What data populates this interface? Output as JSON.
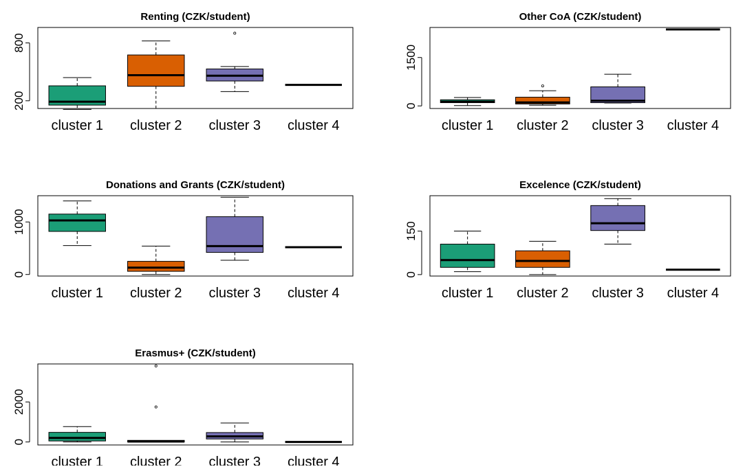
{
  "colors": {
    "cluster_1": "#1b9e77",
    "cluster_2": "#d95f02",
    "cluster_3": "#7570b3",
    "cluster_4": "#ffffff",
    "median": "#000000",
    "frame": "#000000"
  },
  "chart_data": [
    {
      "type": "box",
      "title": "Renting (CZK/student)",
      "categories": [
        "cluster 1",
        "cluster 2",
        "cluster 3",
        "cluster 4"
      ],
      "yticks": [
        200,
        800
      ],
      "ylim": [
        120,
        960
      ],
      "boxes": [
        {
          "min": 110,
          "q1": 155,
          "median": 190,
          "q3": 355,
          "max": 440,
          "outliers": []
        },
        {
          "min": 120,
          "q1": 350,
          "median": 465,
          "q3": 675,
          "max": 820,
          "outliers": []
        },
        {
          "min": 295,
          "q1": 405,
          "median": 460,
          "q3": 530,
          "max": 555,
          "outliers": [
            900
          ]
        },
        {
          "min": 365,
          "q1": 365,
          "median": 365,
          "q3": 365,
          "max": 365,
          "outliers": []
        }
      ]
    },
    {
      "type": "box",
      "title": "Other CoA (CZK/student)",
      "categories": [
        "cluster 1",
        "cluster 2",
        "cluster 3",
        "cluster 4"
      ],
      "yticks": [
        0,
        1500
      ],
      "ylim": [
        -80,
        2430
      ],
      "boxes": [
        {
          "min": 10,
          "q1": 100,
          "median": 130,
          "q3": 190,
          "max": 260,
          "outliers": []
        },
        {
          "min": 20,
          "q1": 60,
          "median": 110,
          "q3": 270,
          "max": 470,
          "outliers": [
            620
          ]
        },
        {
          "min": 90,
          "q1": 100,
          "median": 160,
          "q3": 590,
          "max": 980,
          "outliers": []
        },
        {
          "min": 2370,
          "q1": 2370,
          "median": 2370,
          "q3": 2370,
          "max": 2370,
          "outliers": []
        }
      ]
    },
    {
      "type": "box",
      "title": "Donations and Grants (CZK/student)",
      "categories": [
        "cluster 1",
        "cluster 2",
        "cluster 3",
        "cluster 4"
      ],
      "yticks": [
        0,
        1000
      ],
      "ylim": [
        -30,
        1500
      ],
      "boxes": [
        {
          "min": 550,
          "q1": 820,
          "median": 1030,
          "q3": 1150,
          "max": 1400,
          "outliers": []
        },
        {
          "min": 0,
          "q1": 60,
          "median": 130,
          "q3": 250,
          "max": 540,
          "outliers": []
        },
        {
          "min": 270,
          "q1": 420,
          "median": 540,
          "q3": 1100,
          "max": 1470,
          "outliers": []
        },
        {
          "min": 520,
          "q1": 520,
          "median": 520,
          "q3": 520,
          "max": 520,
          "outliers": []
        }
      ]
    },
    {
      "type": "box",
      "title": "Excelence (CZK/student)",
      "categories": [
        "cluster 1",
        "cluster 2",
        "cluster 3",
        "cluster 4"
      ],
      "yticks": [
        0,
        150
      ],
      "ylim": [
        -5,
        272
      ],
      "boxes": [
        {
          "min": 10,
          "q1": 25,
          "median": 50,
          "q3": 105,
          "max": 150,
          "outliers": []
        },
        {
          "min": 0,
          "q1": 25,
          "median": 47,
          "q3": 82,
          "max": 115,
          "outliers": []
        },
        {
          "min": 105,
          "q1": 152,
          "median": 177,
          "q3": 238,
          "max": 262,
          "outliers": []
        },
        {
          "min": 17,
          "q1": 17,
          "median": 17,
          "q3": 17,
          "max": 17,
          "outliers": []
        }
      ]
    },
    {
      "type": "box",
      "title": "Erasmus+  (CZK/student)",
      "categories": [
        "cluster 1",
        "cluster 2",
        "cluster 3",
        "cluster 4"
      ],
      "yticks": [
        0,
        2000
      ],
      "ylim": [
        -150,
        3900
      ],
      "boxes": [
        {
          "min": 0,
          "q1": 50,
          "median": 200,
          "q3": 480,
          "max": 770,
          "outliers": []
        },
        {
          "min": 0,
          "q1": 0,
          "median": 20,
          "q3": 80,
          "max": 80,
          "outliers": [
            1750,
            3800
          ]
        },
        {
          "min": 0,
          "q1": 150,
          "median": 280,
          "q3": 470,
          "max": 950,
          "outliers": []
        },
        {
          "min": 0,
          "q1": 0,
          "median": 0,
          "q3": 0,
          "max": 0,
          "outliers": []
        }
      ]
    }
  ]
}
